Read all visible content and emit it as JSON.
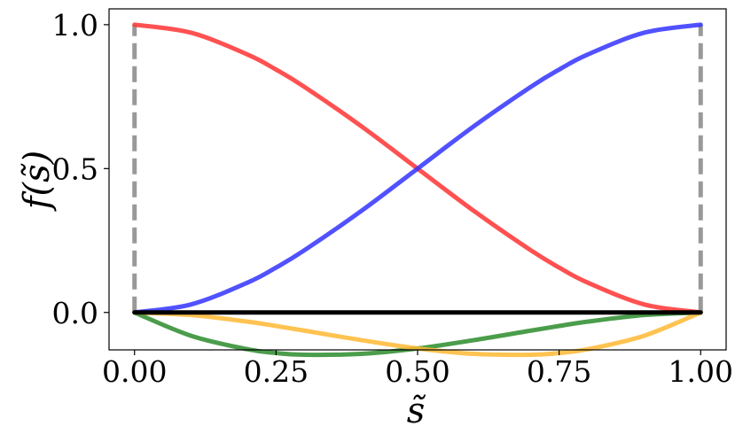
{
  "chart_data": {
    "type": "line",
    "xlabel": "s̃",
    "ylabel": "f(s̃)",
    "xlim": [
      -0.045,
      1.045
    ],
    "ylim": [
      -0.13,
      1.055
    ],
    "x_ticks": [
      "0.00",
      "0.25",
      "0.50",
      "0.75",
      "1.00"
    ],
    "x_tick_values": [
      0,
      0.25,
      0.5,
      0.75,
      1.0
    ],
    "y_ticks": [
      "0.0",
      "0.5",
      "1.0"
    ],
    "y_tick_values": [
      0,
      0.5,
      1.0
    ],
    "grid": false,
    "legend": "none",
    "x": [
      0,
      0.1,
      0.2,
      0.25,
      0.3,
      0.4,
      0.5,
      0.6,
      0.7,
      0.75,
      0.8,
      0.9,
      1.0
    ],
    "series": [
      {
        "color": "#ff3333",
        "values": [
          1.0,
          0.972,
          0.896,
          0.844,
          0.784,
          0.648,
          0.5,
          0.352,
          0.216,
          0.156,
          0.104,
          0.028,
          0.0
        ]
      },
      {
        "color": "#3333ff",
        "values": [
          0.0,
          0.028,
          0.104,
          0.156,
          0.216,
          0.352,
          0.5,
          0.648,
          0.784,
          0.844,
          0.896,
          0.972,
          1.0
        ]
      },
      {
        "color": "#2b8c2b",
        "values": [
          0.0,
          -0.081,
          -0.128,
          -0.141,
          -0.147,
          -0.144,
          -0.125,
          -0.096,
          -0.063,
          -0.047,
          -0.032,
          -0.009,
          0.0
        ]
      },
      {
        "color": "#ffb833",
        "values": [
          0.0,
          -0.009,
          -0.032,
          -0.047,
          -0.063,
          -0.096,
          -0.125,
          -0.144,
          -0.147,
          -0.141,
          -0.128,
          -0.081,
          0.0
        ]
      },
      {
        "color": "#000000",
        "values": [
          0,
          0,
          0,
          0,
          0,
          0,
          0,
          0,
          0,
          0,
          0,
          0,
          0
        ]
      }
    ],
    "boundaries": {
      "color": "#999999",
      "style": "dashed",
      "x": [
        0,
        1.0
      ],
      "y_range": [
        0,
        1.0
      ]
    }
  }
}
